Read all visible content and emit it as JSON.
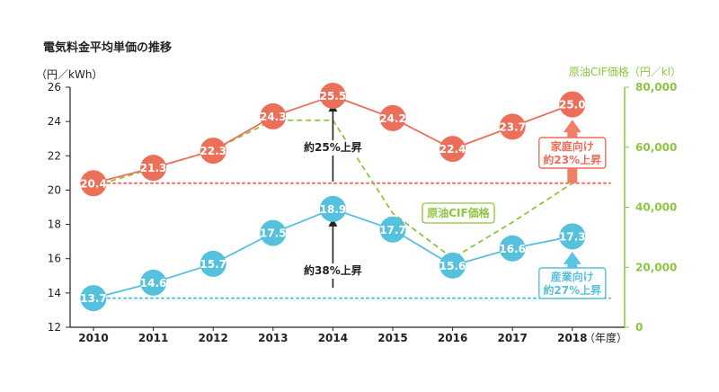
{
  "chart_data": {
    "type": "line",
    "title": "電気料金平均単価の推移",
    "y_left_unit": "（円／kWh）",
    "y_right_unit": "原油CIF価格（円／kl）",
    "x_unit": "（年度）",
    "categories": [
      "2010",
      "2011",
      "2012",
      "2013",
      "2014",
      "2015",
      "2016",
      "2017",
      "2018"
    ],
    "y_left": {
      "min": 12,
      "max": 26,
      "ticks": [
        "12",
        "14",
        "16",
        "18",
        "20",
        "22",
        "24",
        "26"
      ]
    },
    "y_right": {
      "min": 0,
      "max": 80000,
      "ticks": [
        "0",
        "20,000",
        "40,000",
        "60,000",
        "80,000"
      ]
    },
    "series": [
      {
        "key": "household",
        "axis": "left",
        "color": "#ec6f5a",
        "values": [
          20.4,
          21.3,
          22.3,
          24.3,
          25.5,
          24.2,
          22.4,
          23.7,
          25.0
        ],
        "labels": [
          "20.4",
          "21.3",
          "22.3",
          "24.3",
          "25.5",
          "24.2",
          "22.4",
          "23.7",
          "25.0"
        ]
      },
      {
        "key": "industrial",
        "axis": "left",
        "color": "#56c1dc",
        "values": [
          13.7,
          14.6,
          15.7,
          17.5,
          18.9,
          17.7,
          15.6,
          16.6,
          17.3
        ],
        "labels": [
          "13.7",
          "14.6",
          "15.7",
          "17.5",
          "18.9",
          "17.7",
          "15.6",
          "16.6",
          "17.3"
        ]
      },
      {
        "key": "crude",
        "name": "原油CIF価格",
        "axis": "right",
        "color": "#8cc63e",
        "style": "dashed",
        "values": [
          47000,
          53000,
          59000,
          69000,
          69000,
          38000,
          23000,
          35000,
          48000
        ]
      }
    ],
    "reference_lines": [
      {
        "series": "household",
        "value": 20.4,
        "color": "#ec6f5a",
        "style": "dotted"
      },
      {
        "series": "industrial",
        "value": 13.7,
        "color": "#56c1dc",
        "style": "dotted"
      }
    ],
    "annotations": {
      "household_2014": "約25%上昇",
      "industrial_2014": "約38%上昇",
      "household_box": [
        "家庭向け",
        "約23%上昇"
      ],
      "industrial_box": [
        "産業向け",
        "約27%上昇"
      ],
      "crude_label": "原油CIF価格"
    },
    "colors": {
      "household": "#ec6f5a",
      "industrial": "#56c1dc",
      "crude": "#8cc63e",
      "arrow_household": "#ef8068",
      "arrow_industrial": "#5bc4e2",
      "axis": "#222222"
    },
    "grid": false
  }
}
